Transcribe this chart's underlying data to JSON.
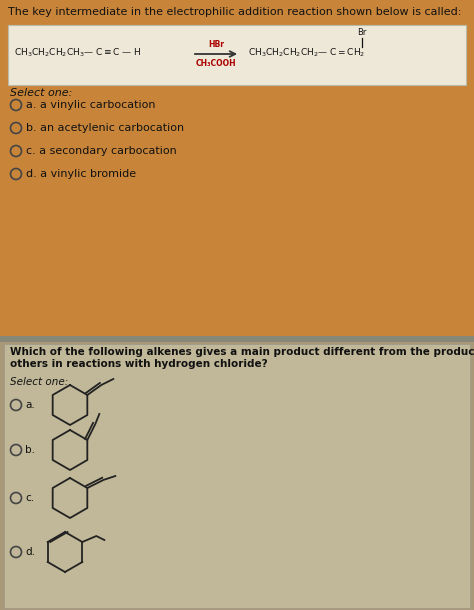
{
  "bg_top_color": "#c8853a",
  "bg_bottom_color": "#a89878",
  "reaction_box_color": "#e8d8b8",
  "q2_box_color": "#c8c0a8",
  "text_dark": "#111111",
  "text_red": "#8B0000",
  "title1": "The key intermediate in the electrophilic addition reaction shown below is called:",
  "select_one1": "Select one:",
  "options1": [
    "a. a vinylic carbocation",
    "b. an acetylenic carbocation",
    "c. a secondary carbocation",
    "d. a vinylic bromide"
  ],
  "title2": "Which of the following alkenes gives a main product different from the products from the\nothers in reactions with hydrogen chloride?",
  "select_one2": "Select one:",
  "options2": [
    "a.",
    "b.",
    "c.",
    "d."
  ]
}
